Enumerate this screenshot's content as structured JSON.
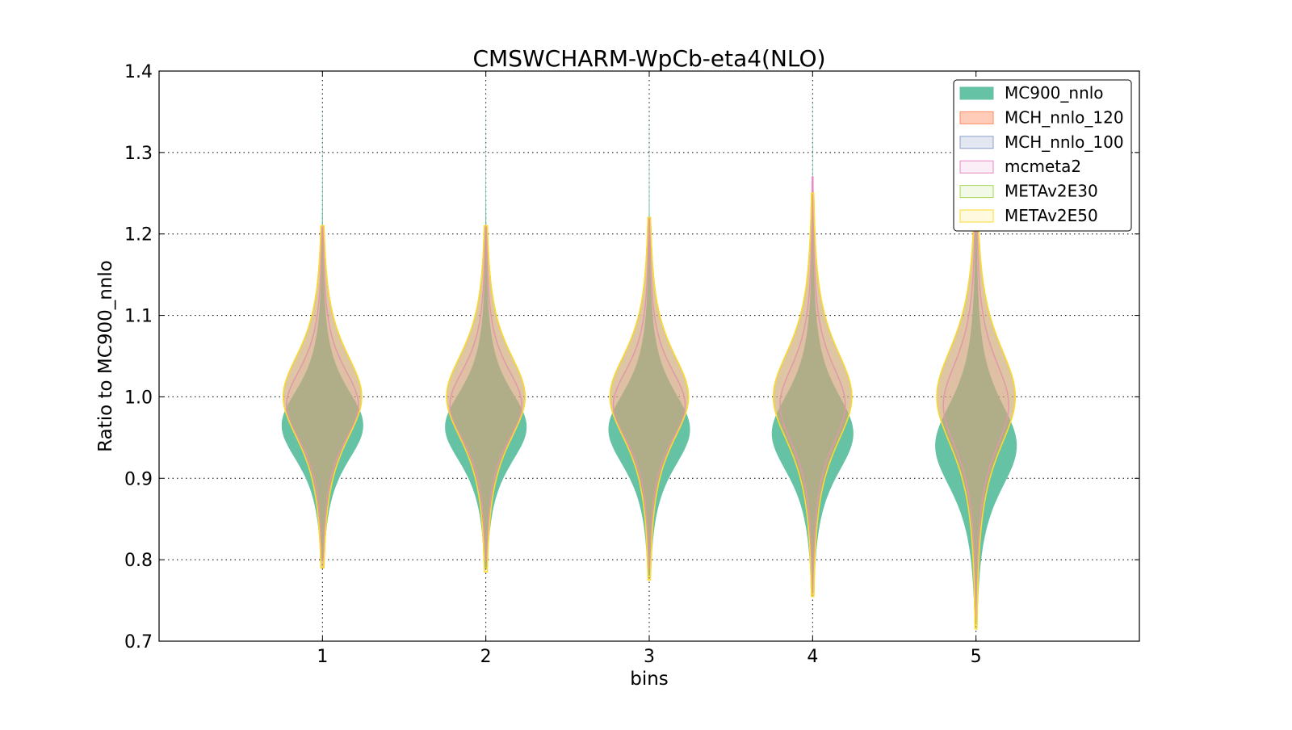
{
  "chart_data": {
    "type": "violin",
    "title": "CMSWCHARM-WpCb-eta4(NLO)",
    "xlabel": "bins",
    "ylabel": "Ratio to MC900_nnlo",
    "xlim": [
      0,
      6
    ],
    "ylim": [
      0.7,
      1.4
    ],
    "xticks": [
      "1",
      "2",
      "3",
      "4",
      "5"
    ],
    "yticks": [
      "0.7",
      "0.8",
      "0.9",
      "1.0",
      "1.1",
      "1.2",
      "1.3",
      "1.4"
    ],
    "grid": true,
    "legend_position": "top-right",
    "series": [
      {
        "name": "MC900_nnlo",
        "color": "#66c2a5",
        "fill_opacity": 1.0,
        "bins": [
          {
            "min": 0.8,
            "max": 1.35,
            "center": 0.965,
            "spread": 0.05,
            "max_halfwidth": 0.25
          },
          {
            "min": 0.79,
            "max": 1.35,
            "center": 0.963,
            "spread": 0.05,
            "max_halfwidth": 0.25
          },
          {
            "min": 0.78,
            "max": 1.355,
            "center": 0.96,
            "spread": 0.052,
            "max_halfwidth": 0.25
          },
          {
            "min": 0.76,
            "max": 1.36,
            "center": 0.955,
            "spread": 0.055,
            "max_halfwidth": 0.25
          },
          {
            "min": 0.72,
            "max": 1.37,
            "center": 0.94,
            "spread": 0.06,
            "max_halfwidth": 0.25
          }
        ]
      },
      {
        "name": "MCH_nnlo_120",
        "color": "#fc8d62",
        "fill_opacity": 0.45,
        "bins": [
          {
            "min": 0.79,
            "max": 1.21,
            "center": 1.0,
            "spread": 0.06,
            "max_halfwidth": 0.24
          },
          {
            "min": 0.79,
            "max": 1.21,
            "center": 1.0,
            "spread": 0.06,
            "max_halfwidth": 0.24
          },
          {
            "min": 0.78,
            "max": 1.22,
            "center": 1.0,
            "spread": 0.06,
            "max_halfwidth": 0.24
          },
          {
            "min": 0.755,
            "max": 1.25,
            "center": 1.0,
            "spread": 0.065,
            "max_halfwidth": 0.24
          },
          {
            "min": 0.72,
            "max": 1.23,
            "center": 1.0,
            "spread": 0.07,
            "max_halfwidth": 0.24
          }
        ]
      },
      {
        "name": "MCH_nnlo_100",
        "color": "#8da0cb",
        "fill_opacity": 0.25,
        "bins": [
          {
            "min": 0.79,
            "max": 1.21,
            "center": 1.0,
            "spread": 0.06,
            "max_halfwidth": 0.24
          },
          {
            "min": 0.79,
            "max": 1.21,
            "center": 1.0,
            "spread": 0.06,
            "max_halfwidth": 0.24
          },
          {
            "min": 0.78,
            "max": 1.22,
            "center": 1.0,
            "spread": 0.06,
            "max_halfwidth": 0.24
          },
          {
            "min": 0.755,
            "max": 1.25,
            "center": 1.0,
            "spread": 0.065,
            "max_halfwidth": 0.24
          },
          {
            "min": 0.72,
            "max": 1.23,
            "center": 1.0,
            "spread": 0.07,
            "max_halfwidth": 0.24
          }
        ]
      },
      {
        "name": "mcmeta2",
        "color": "#e78ac3",
        "fill_opacity": 0.1,
        "bins": [
          {
            "min": 0.8,
            "max": 1.21,
            "center": 0.99,
            "spread": 0.05,
            "max_halfwidth": 0.22
          },
          {
            "min": 0.8,
            "max": 1.21,
            "center": 0.99,
            "spread": 0.05,
            "max_halfwidth": 0.22
          },
          {
            "min": 0.79,
            "max": 1.22,
            "center": 0.99,
            "spread": 0.05,
            "max_halfwidth": 0.22
          },
          {
            "min": 0.76,
            "max": 1.27,
            "center": 0.99,
            "spread": 0.055,
            "max_halfwidth": 0.2
          },
          {
            "min": 0.73,
            "max": 1.24,
            "center": 0.99,
            "spread": 0.06,
            "max_halfwidth": 0.2
          }
        ]
      },
      {
        "name": "METAv2E30",
        "color": "#a6d854",
        "fill_opacity": 0.1,
        "bins": [
          {
            "min": 0.79,
            "max": 1.21,
            "center": 1.0,
            "spread": 0.06,
            "max_halfwidth": 0.24
          },
          {
            "min": 0.79,
            "max": 1.21,
            "center": 1.0,
            "spread": 0.06,
            "max_halfwidth": 0.24
          },
          {
            "min": 0.78,
            "max": 1.22,
            "center": 1.0,
            "spread": 0.06,
            "max_halfwidth": 0.24
          },
          {
            "min": 0.755,
            "max": 1.25,
            "center": 1.0,
            "spread": 0.065,
            "max_halfwidth": 0.24
          },
          {
            "min": 0.72,
            "max": 1.23,
            "center": 1.0,
            "spread": 0.07,
            "max_halfwidth": 0.24
          }
        ]
      },
      {
        "name": "METAv2E50",
        "color": "#ffd92f",
        "fill_opacity": 0.1,
        "bins": [
          {
            "min": 0.79,
            "max": 1.21,
            "center": 1.0,
            "spread": 0.06,
            "max_halfwidth": 0.24
          },
          {
            "min": 0.785,
            "max": 1.21,
            "center": 1.0,
            "spread": 0.06,
            "max_halfwidth": 0.24
          },
          {
            "min": 0.775,
            "max": 1.22,
            "center": 1.0,
            "spread": 0.06,
            "max_halfwidth": 0.24
          },
          {
            "min": 0.755,
            "max": 1.25,
            "center": 1.0,
            "spread": 0.065,
            "max_halfwidth": 0.24
          },
          {
            "min": 0.715,
            "max": 1.23,
            "center": 1.0,
            "spread": 0.07,
            "max_halfwidth": 0.24
          }
        ]
      }
    ]
  }
}
